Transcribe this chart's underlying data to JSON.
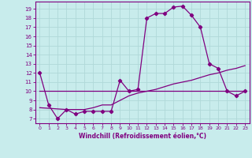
{
  "xlabel": "Windchill (Refroidissement éolien,°C)",
  "bg_color": "#c8ecec",
  "line_color": "#800080",
  "grid_color": "#b0d8d8",
  "xlim": [
    -0.5,
    23.5
  ],
  "ylim": [
    6.5,
    19.8
  ],
  "xticks": [
    0,
    1,
    2,
    3,
    4,
    5,
    6,
    7,
    8,
    9,
    10,
    11,
    12,
    13,
    14,
    15,
    16,
    17,
    18,
    19,
    20,
    21,
    22,
    23
  ],
  "yticks": [
    7,
    8,
    9,
    10,
    11,
    12,
    13,
    14,
    15,
    16,
    17,
    18,
    19
  ],
  "main_curve_x": [
    0,
    1,
    2,
    3,
    4,
    5,
    6,
    7,
    8,
    9,
    10,
    11,
    12,
    13,
    14,
    15,
    16,
    17,
    18,
    19,
    20,
    21,
    22,
    23
  ],
  "main_curve_y": [
    12,
    8.5,
    7,
    8,
    7.5,
    7.8,
    7.8,
    7.8,
    7.8,
    11.2,
    10.0,
    10.2,
    18.0,
    18.5,
    18.5,
    19.2,
    19.3,
    18.3,
    17.0,
    13.0,
    12.5,
    10.0,
    9.5,
    10.0
  ],
  "line2_x": [
    0,
    3,
    5,
    6,
    7,
    8,
    9,
    10,
    11,
    12,
    13,
    14,
    15,
    16,
    17,
    18,
    19,
    20,
    21,
    22,
    23
  ],
  "line2_y": [
    8.2,
    8.0,
    8.0,
    8.2,
    8.5,
    8.5,
    9.0,
    9.5,
    9.8,
    10.0,
    10.2,
    10.5,
    10.8,
    11.0,
    11.2,
    11.5,
    11.8,
    12.0,
    12.3,
    12.5,
    12.8
  ],
  "line3_x": [
    0,
    23
  ],
  "line3_y": [
    10,
    10
  ],
  "marker": "D",
  "markersize": 2.2,
  "linewidth": 0.9
}
